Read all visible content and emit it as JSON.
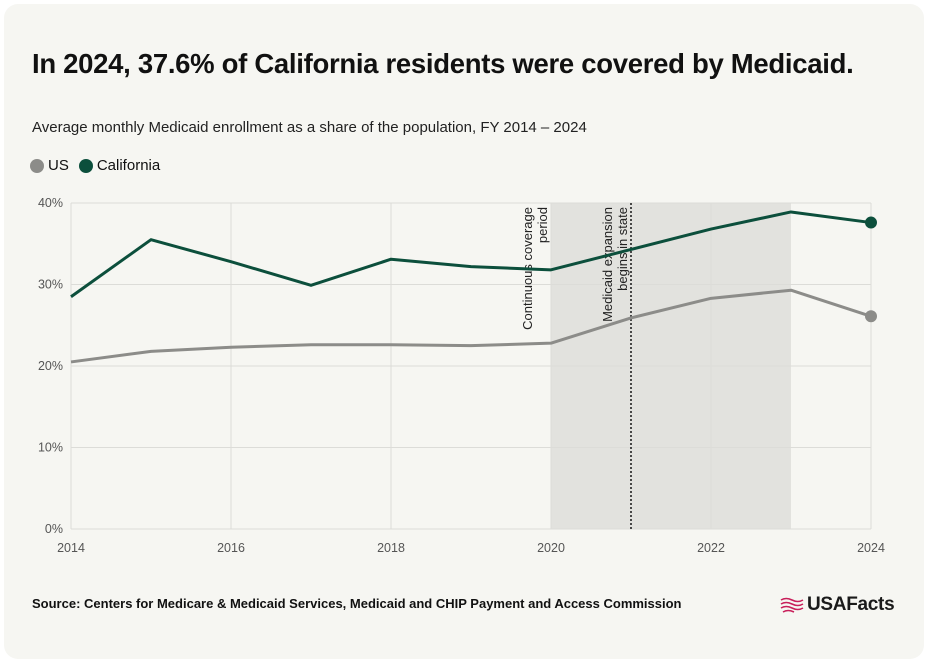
{
  "header": {
    "title": "In 2024, 37.6% of California residents were covered by Medicaid.",
    "subtitle": "Average monthly Medicaid enrollment as a share of the population, FY 2014 – 2024"
  },
  "legend": [
    {
      "label": "US",
      "color": "#8c8c89"
    },
    {
      "label": "California",
      "color": "#0c4f3c"
    }
  ],
  "chart_data": {
    "type": "line",
    "x": [
      2014,
      2015,
      2016,
      2017,
      2018,
      2019,
      2020,
      2021,
      2022,
      2023,
      2024
    ],
    "series": [
      {
        "name": "US",
        "color": "#8c8c89",
        "values": [
          20.5,
          21.8,
          22.3,
          22.6,
          22.6,
          22.5,
          22.8,
          25.9,
          28.3,
          29.3,
          26.1
        ]
      },
      {
        "name": "California",
        "color": "#0c4f3c",
        "values": [
          28.5,
          35.5,
          32.8,
          29.9,
          33.1,
          32.2,
          31.8,
          34.3,
          36.8,
          38.9,
          37.6
        ]
      }
    ],
    "x_ticks": [
      "2014",
      "2016",
      "2018",
      "2020",
      "2022",
      "2024"
    ],
    "y_ticks": [
      "0%",
      "10%",
      "20%",
      "30%",
      "40%"
    ],
    "y_tick_values": [
      0,
      10,
      20,
      30,
      40
    ],
    "xlim": [
      2014,
      2024
    ],
    "ylim": [
      0,
      40
    ],
    "grid": true,
    "shaded_period": {
      "from": 2020,
      "to": 2023,
      "label_line1": "Continuous coverage",
      "label_line2": "period"
    },
    "marker_line": {
      "x": 2021,
      "label_line1": "Medicaid expansion",
      "label_line2": "begins in state"
    },
    "endpoint_markers": true
  },
  "footer": {
    "source": "Source: Centers for Medicare & Medicaid Services, Medicaid and CHIP Payment and Access Commission",
    "logo_text": "USAFacts",
    "logo_color": "#c81f5a"
  }
}
